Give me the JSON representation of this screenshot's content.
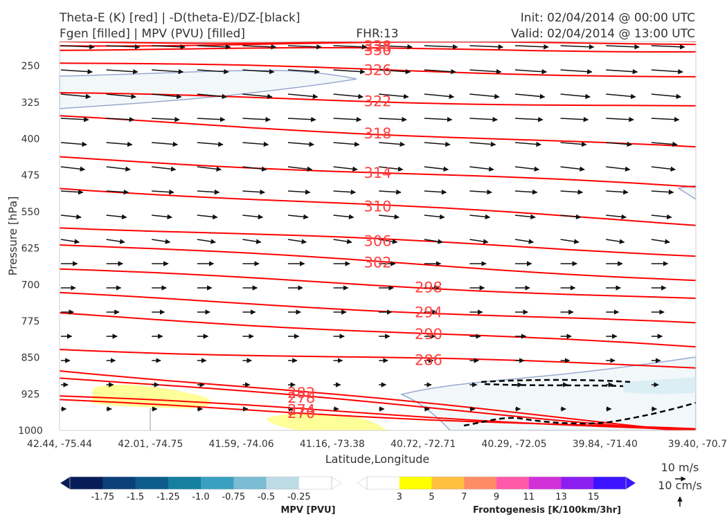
{
  "header": {
    "title_left_1": "Theta-E (K) [red] | -D(theta-E)/DZ-[black]",
    "title_left_2": "Fgen [filled] | MPV (PVU) [filled]",
    "title_center": "FHR:13",
    "title_right_1": "Init: 02/04/2014 @ 00:00 UTC",
    "title_right_2": "Valid: 02/04/2014 @ 13:00 UTC"
  },
  "chart_data": {
    "type": "cross-section",
    "xlabel": "Latitude,Longitude",
    "ylabel": "Pressure [hPa]",
    "ylim": [
      1000,
      200
    ],
    "x_ticks": [
      "42.44, -75.44",
      "42.01, -74.75",
      "41.59, -74.06",
      "41.16, -73.38",
      "40.72, -72.71",
      "40.29, -72.05",
      "39.84, -71.40",
      "39.40, -70.7"
    ],
    "y_ticks": [
      250,
      325,
      400,
      475,
      550,
      625,
      700,
      775,
      850,
      925,
      1000
    ],
    "theta_e_contours_K": [
      {
        "level": 338,
        "y_left": 200,
        "y_right": 200
      },
      {
        "level": 334,
        "y_left": 206,
        "y_right": 203
      },
      {
        "level": 330,
        "y_left": 215,
        "y_right": 218
      },
      {
        "level": 326,
        "y_left": 244,
        "y_right": 272
      },
      {
        "level": 322,
        "y_left": 308,
        "y_right": 335
      },
      {
        "level": 318,
        "y_left": 356,
        "y_right": 420
      },
      {
        "level": 314,
        "y_left": 438,
        "y_right": 500
      },
      {
        "level": 310,
        "y_left": 500,
        "y_right": 576
      },
      {
        "level": 306,
        "y_left": 580,
        "y_right": 638
      },
      {
        "level": 302,
        "y_left": 617,
        "y_right": 690
      },
      {
        "level": 298,
        "y_left": 670,
        "y_right": 730
      },
      {
        "level": 294,
        "y_left": 720,
        "y_right": 782
      },
      {
        "level": 290,
        "y_left": 760,
        "y_right": 830
      },
      {
        "level": 286,
        "y_left": 832,
        "y_right": 870
      },
      {
        "level": 282,
        "y_left": 874,
        "y_right": 1000
      },
      {
        "level": 278,
        "y_left": 890,
        "y_right": 1000
      },
      {
        "level": 274,
        "y_left": 930,
        "y_right": 1000
      },
      {
        "level": 270,
        "y_left": 940,
        "y_right": 1000
      }
    ],
    "mpv_colorbar": {
      "title": "MPV [PVU]",
      "ticks": [
        "-1.75",
        "-1.5",
        "-1.25",
        "-1.0",
        "-0.75",
        "-0.5",
        "-0.25"
      ],
      "colors": [
        "#081d58",
        "#0b3f7a",
        "#0d5c8c",
        "#157f9f",
        "#3a9fc0",
        "#7bbcd3",
        "#bddce6",
        "#ffffff"
      ]
    },
    "fgen_colorbar": {
      "title": "Frontogenesis [K/100km/3hr]",
      "ticks": [
        "3",
        "5",
        "7",
        "9",
        "11",
        "13",
        "15"
      ],
      "colors": [
        "#ffffff",
        "#ffff00",
        "#ffc040",
        "#ff8c66",
        "#ff5aaa",
        "#d032d8",
        "#8c1ef0",
        "#3c14ff"
      ]
    },
    "vector_key": {
      "horizontal": "10 m/s",
      "vertical": "10 cm/s"
    },
    "colors": {
      "theta_e": "#ff0000",
      "theta_e_label": "#ff4040",
      "stability": "#000000",
      "mpv_outline": "#98a8d0"
    }
  }
}
